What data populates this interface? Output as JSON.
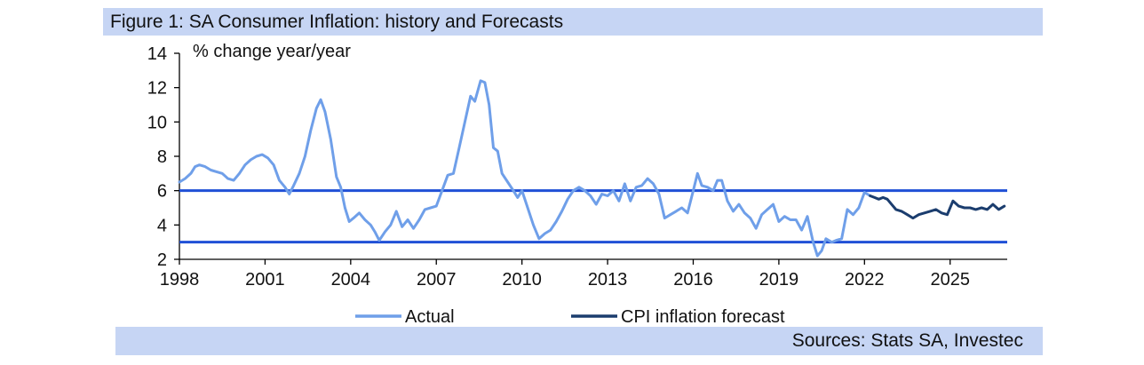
{
  "title": "Figure 1: SA Consumer Inflation: history and Forecasts",
  "source": "Sources: Stats SA, Investec",
  "colors": {
    "actual": "#6f9fe9",
    "forecast": "#1b3d6e",
    "reference_lines": "#1f4fd6",
    "band": "#c6d5f4"
  },
  "chart_data": {
    "type": "line",
    "title": "Figure 1: SA Consumer Inflation: history and Forecasts",
    "ylabel": "% change year/year",
    "xlabel": "",
    "xlim": [
      1998,
      2027.0
    ],
    "ylim": [
      2,
      14
    ],
    "x_ticks": [
      1998,
      2001,
      2004,
      2007,
      2010,
      2013,
      2016,
      2019,
      2022,
      2025
    ],
    "y_ticks": [
      2,
      4,
      6,
      8,
      10,
      12,
      14
    ],
    "legend": {
      "placement": "bottom",
      "entries": [
        "Actual",
        "CPI inflation forecast"
      ]
    },
    "grid": false,
    "reference_lines": [
      6,
      3
    ],
    "series": [
      {
        "name": "Actual",
        "color": "#6f9fe9",
        "points": [
          [
            1998.0,
            6.5
          ],
          [
            1998.2,
            6.7
          ],
          [
            1998.4,
            7.0
          ],
          [
            1998.55,
            7.4
          ],
          [
            1998.7,
            7.5
          ],
          [
            1998.9,
            7.4
          ],
          [
            1999.1,
            7.2
          ],
          [
            1999.3,
            7.1
          ],
          [
            1999.5,
            7.0
          ],
          [
            1999.7,
            6.7
          ],
          [
            1999.9,
            6.6
          ],
          [
            2000.1,
            7.0
          ],
          [
            2000.3,
            7.5
          ],
          [
            2000.5,
            7.8
          ],
          [
            2000.7,
            8.0
          ],
          [
            2000.9,
            8.1
          ],
          [
            2001.1,
            7.9
          ],
          [
            2001.3,
            7.5
          ],
          [
            2001.5,
            6.6
          ],
          [
            2001.7,
            6.2
          ],
          [
            2001.85,
            5.8
          ],
          [
            2002.0,
            6.3
          ],
          [
            2002.2,
            7.0
          ],
          [
            2002.4,
            8.0
          ],
          [
            2002.6,
            9.5
          ],
          [
            2002.8,
            10.8
          ],
          [
            2002.95,
            11.3
          ],
          [
            2003.1,
            10.6
          ],
          [
            2003.3,
            9.0
          ],
          [
            2003.5,
            6.8
          ],
          [
            2003.65,
            6.2
          ],
          [
            2003.8,
            5.0
          ],
          [
            2003.95,
            4.2
          ],
          [
            2004.1,
            4.4
          ],
          [
            2004.3,
            4.7
          ],
          [
            2004.5,
            4.3
          ],
          [
            2004.7,
            4.0
          ],
          [
            2004.85,
            3.6
          ],
          [
            2005.0,
            3.1
          ],
          [
            2005.2,
            3.6
          ],
          [
            2005.4,
            4.0
          ],
          [
            2005.6,
            4.8
          ],
          [
            2005.8,
            3.9
          ],
          [
            2006.0,
            4.3
          ],
          [
            2006.2,
            3.8
          ],
          [
            2006.4,
            4.3
          ],
          [
            2006.6,
            4.9
          ],
          [
            2006.8,
            5.0
          ],
          [
            2007.0,
            5.1
          ],
          [
            2007.2,
            6.0
          ],
          [
            2007.4,
            6.9
          ],
          [
            2007.6,
            7.0
          ],
          [
            2007.8,
            8.5
          ],
          [
            2008.0,
            10.0
          ],
          [
            2008.2,
            11.5
          ],
          [
            2008.35,
            11.2
          ],
          [
            2008.55,
            12.4
          ],
          [
            2008.7,
            12.3
          ],
          [
            2008.85,
            11.0
          ],
          [
            2009.0,
            8.5
          ],
          [
            2009.15,
            8.3
          ],
          [
            2009.3,
            7.0
          ],
          [
            2009.5,
            6.5
          ],
          [
            2009.7,
            6.0
          ],
          [
            2009.85,
            5.6
          ],
          [
            2010.0,
            6.0
          ],
          [
            2010.2,
            5.0
          ],
          [
            2010.4,
            4.0
          ],
          [
            2010.6,
            3.2
          ],
          [
            2010.8,
            3.5
          ],
          [
            2011.0,
            3.7
          ],
          [
            2011.2,
            4.2
          ],
          [
            2011.4,
            4.8
          ],
          [
            2011.6,
            5.5
          ],
          [
            2011.8,
            6.0
          ],
          [
            2012.0,
            6.2
          ],
          [
            2012.2,
            6.0
          ],
          [
            2012.4,
            5.7
          ],
          [
            2012.6,
            5.2
          ],
          [
            2012.8,
            5.8
          ],
          [
            2013.0,
            5.7
          ],
          [
            2013.2,
            6.0
          ],
          [
            2013.4,
            5.4
          ],
          [
            2013.6,
            6.4
          ],
          [
            2013.8,
            5.4
          ],
          [
            2014.0,
            6.2
          ],
          [
            2014.2,
            6.3
          ],
          [
            2014.4,
            6.7
          ],
          [
            2014.6,
            6.4
          ],
          [
            2014.8,
            5.8
          ],
          [
            2015.0,
            4.4
          ],
          [
            2015.2,
            4.6
          ],
          [
            2015.4,
            4.8
          ],
          [
            2015.6,
            5.0
          ],
          [
            2015.8,
            4.7
          ],
          [
            2016.0,
            6.0
          ],
          [
            2016.15,
            7.0
          ],
          [
            2016.3,
            6.3
          ],
          [
            2016.5,
            6.2
          ],
          [
            2016.7,
            6.0
          ],
          [
            2016.85,
            6.6
          ],
          [
            2017.0,
            6.6
          ],
          [
            2017.2,
            5.4
          ],
          [
            2017.4,
            4.8
          ],
          [
            2017.6,
            5.2
          ],
          [
            2017.8,
            4.7
          ],
          [
            2018.0,
            4.4
          ],
          [
            2018.2,
            3.8
          ],
          [
            2018.4,
            4.6
          ],
          [
            2018.6,
            4.9
          ],
          [
            2018.8,
            5.2
          ],
          [
            2019.0,
            4.2
          ],
          [
            2019.2,
            4.5
          ],
          [
            2019.4,
            4.3
          ],
          [
            2019.6,
            4.3
          ],
          [
            2019.8,
            3.7
          ],
          [
            2020.0,
            4.5
          ],
          [
            2020.2,
            3.0
          ],
          [
            2020.35,
            2.2
          ],
          [
            2020.5,
            2.5
          ],
          [
            2020.65,
            3.2
          ],
          [
            2020.85,
            3.0
          ],
          [
            2021.0,
            3.1
          ],
          [
            2021.2,
            3.2
          ],
          [
            2021.4,
            4.9
          ],
          [
            2021.6,
            4.6
          ],
          [
            2021.8,
            5.0
          ],
          [
            2022.0,
            5.9
          ],
          [
            2022.2,
            5.7
          ]
        ]
      },
      {
        "name": "CPI inflation forecast",
        "color": "#1b3d6e",
        "points": [
          [
            2022.2,
            5.7
          ],
          [
            2022.35,
            5.6
          ],
          [
            2022.5,
            5.5
          ],
          [
            2022.65,
            5.6
          ],
          [
            2022.8,
            5.5
          ],
          [
            2022.95,
            5.2
          ],
          [
            2023.1,
            4.9
          ],
          [
            2023.3,
            4.8
          ],
          [
            2023.5,
            4.6
          ],
          [
            2023.7,
            4.4
          ],
          [
            2023.9,
            4.6
          ],
          [
            2024.1,
            4.7
          ],
          [
            2024.3,
            4.8
          ],
          [
            2024.5,
            4.9
          ],
          [
            2024.7,
            4.7
          ],
          [
            2024.9,
            4.6
          ],
          [
            2025.1,
            5.4
          ],
          [
            2025.3,
            5.1
          ],
          [
            2025.5,
            5.0
          ],
          [
            2025.7,
            5.0
          ],
          [
            2025.9,
            4.9
          ],
          [
            2026.1,
            5.0
          ],
          [
            2026.3,
            4.9
          ],
          [
            2026.5,
            5.2
          ],
          [
            2026.7,
            4.9
          ],
          [
            2026.9,
            5.1
          ]
        ]
      }
    ]
  }
}
